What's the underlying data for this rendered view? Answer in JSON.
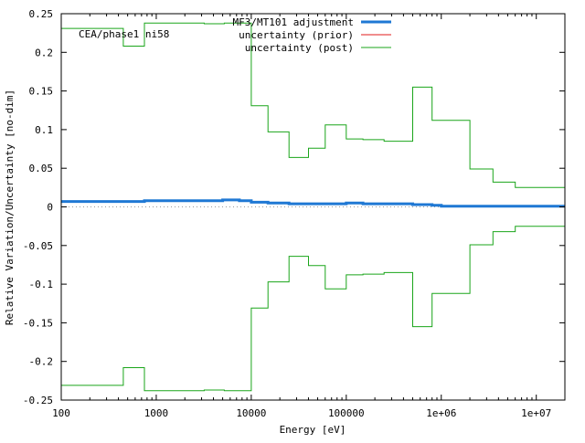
{
  "chart_data": {
    "type": "line",
    "annotation": "CEA/phase1 ni58",
    "xlabel": "Energy [eV]",
    "ylabel": "Relative Variation/Uncertainty [no-dim]",
    "xscale": "log",
    "xlim": [
      100,
      20000000
    ],
    "ylim": [
      -0.25,
      0.25
    ],
    "grid": false,
    "legend_position": "top-right",
    "zero_line": true,
    "xticks": [
      {
        "value": 100,
        "label": "100"
      },
      {
        "value": 1000,
        "label": "1000"
      },
      {
        "value": 10000,
        "label": "10000"
      },
      {
        "value": 100000,
        "label": "100000"
      },
      {
        "value": 1000000,
        "label": "1e+06"
      },
      {
        "value": 10000000,
        "label": "1e+07"
      }
    ],
    "yticks": [
      {
        "value": 0.25,
        "label": "0.25"
      },
      {
        "value": 0.2,
        "label": "0.2"
      },
      {
        "value": 0.15,
        "label": "0.15"
      },
      {
        "value": 0.1,
        "label": "0.1"
      },
      {
        "value": 0.05,
        "label": "0.05"
      },
      {
        "value": 0,
        "label": "0"
      },
      {
        "value": -0.05,
        "label": "-0.05"
      },
      {
        "value": -0.1,
        "label": "-0.1"
      },
      {
        "value": -0.15,
        "label": "-0.15"
      },
      {
        "value": -0.2,
        "label": "-0.2"
      },
      {
        "value": -0.25,
        "label": "-0.25"
      }
    ],
    "series": [
      {
        "name": "MF3/MT101 adjustment",
        "color": "#1f78d4",
        "style": "step",
        "x": [
          100,
          500,
          750,
          1000,
          3000,
          5000,
          7500,
          10000,
          15000,
          25000,
          40000,
          60000,
          80000,
          100000,
          150000,
          250000,
          500000,
          800000,
          1000000,
          2000000,
          3500000,
          6000000,
          8000000,
          20000000
        ],
        "y": [
          0.007,
          0.007,
          0.008,
          0.008,
          0.008,
          0.009,
          0.008,
          0.006,
          0.005,
          0.004,
          0.004,
          0.004,
          0.004,
          0.005,
          0.004,
          0.004,
          0.003,
          0.002,
          0.001,
          0.001,
          0.001,
          0.001,
          0.001,
          0.001
        ]
      },
      {
        "name": "uncertainty (prior)",
        "color": "#e01b1b",
        "style": "step",
        "x": [],
        "y": []
      },
      {
        "name": "uncertainty (post)",
        "color": "#1aa51a",
        "style": "step-symmetric",
        "x": [
          100,
          450,
          750,
          3200,
          5200,
          10000,
          15000,
          25000,
          40000,
          60000,
          100000,
          150000,
          250000,
          500000,
          800000,
          1000000,
          2000000,
          3500000,
          6000000,
          8000000,
          20000000
        ],
        "y": [
          0.231,
          0.208,
          0.238,
          0.237,
          0.238,
          0.131,
          0.097,
          0.064,
          0.076,
          0.106,
          0.088,
          0.087,
          0.085,
          0.155,
          0.112,
          0.112,
          0.049,
          0.032,
          0.025,
          0.025,
          0.1
        ]
      }
    ]
  }
}
